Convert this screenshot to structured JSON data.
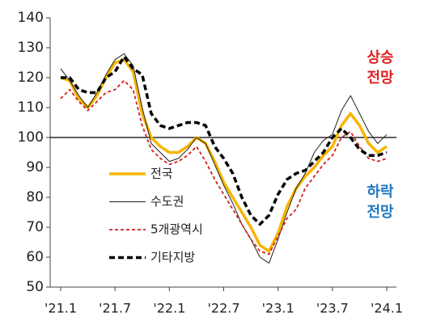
{
  "chart_data": {
    "type": "line",
    "categories": [
      "'21.1",
      null,
      null,
      null,
      null,
      null,
      "'21.7",
      null,
      null,
      null,
      null,
      null,
      "'22.1",
      null,
      null,
      null,
      null,
      null,
      "'22.7",
      null,
      null,
      null,
      null,
      null,
      "'23.1",
      null,
      null,
      null,
      null,
      null,
      "'23.7",
      null,
      null,
      null,
      null,
      null,
      "'24.1"
    ],
    "series": [
      {
        "name": "전국",
        "color": "#f7b500",
        "line_style": "solid",
        "values": [
          120,
          119,
          113,
          110,
          114,
          120,
          125,
          126,
          122,
          108,
          100,
          97,
          95,
          95,
          97,
          100,
          98,
          92,
          85,
          80,
          75,
          70,
          64,
          62,
          68,
          77,
          83,
          87,
          90,
          94,
          97,
          104,
          108,
          104,
          98,
          95,
          97
        ]
      },
      {
        "name": "수도권",
        "color": "#222222",
        "line_style": "solid",
        "values": [
          123,
          119,
          114,
          110,
          115,
          121,
          126,
          128,
          124,
          110,
          98,
          95,
          92,
          93,
          96,
          100,
          98,
          91,
          84,
          78,
          71,
          66,
          60,
          58,
          66,
          75,
          83,
          88,
          95,
          99,
          101,
          109,
          114,
          108,
          102,
          98,
          101
        ]
      },
      {
        "name": "5개광역시",
        "color": "#d42020",
        "line_style": "dashed",
        "values": [
          113,
          116,
          112,
          109,
          112,
          115,
          116,
          119,
          116,
          104,
          96,
          93,
          91,
          92,
          94,
          97,
          92,
          86,
          81,
          76,
          71,
          66,
          62,
          61,
          67,
          73,
          76,
          83,
          87,
          91,
          94,
          100,
          102,
          97,
          93,
          92,
          93
        ]
      },
      {
        "name": "기타지방",
        "color": "#000000",
        "line_style": "dashed",
        "values": [
          120,
          120,
          116,
          115,
          115,
          120,
          122,
          127,
          123,
          121,
          108,
          104,
          103,
          104,
          105,
          105,
          104,
          97,
          93,
          88,
          80,
          74,
          71,
          74,
          81,
          86,
          88,
          89,
          92,
          95,
          100,
          103,
          100,
          96,
          94,
          94,
          95
        ]
      }
    ],
    "ylim": [
      50,
      140
    ],
    "yticks": [
      50,
      60,
      70,
      80,
      90,
      100,
      110,
      120,
      130,
      140
    ],
    "reference_line": 100,
    "legend": "left",
    "annotations": [
      {
        "lines": [
          "상승",
          "전망"
        ],
        "color": "#e02020"
      },
      {
        "lines": [
          "하락",
          "전망"
        ],
        "color": "#1f78c1"
      }
    ]
  }
}
